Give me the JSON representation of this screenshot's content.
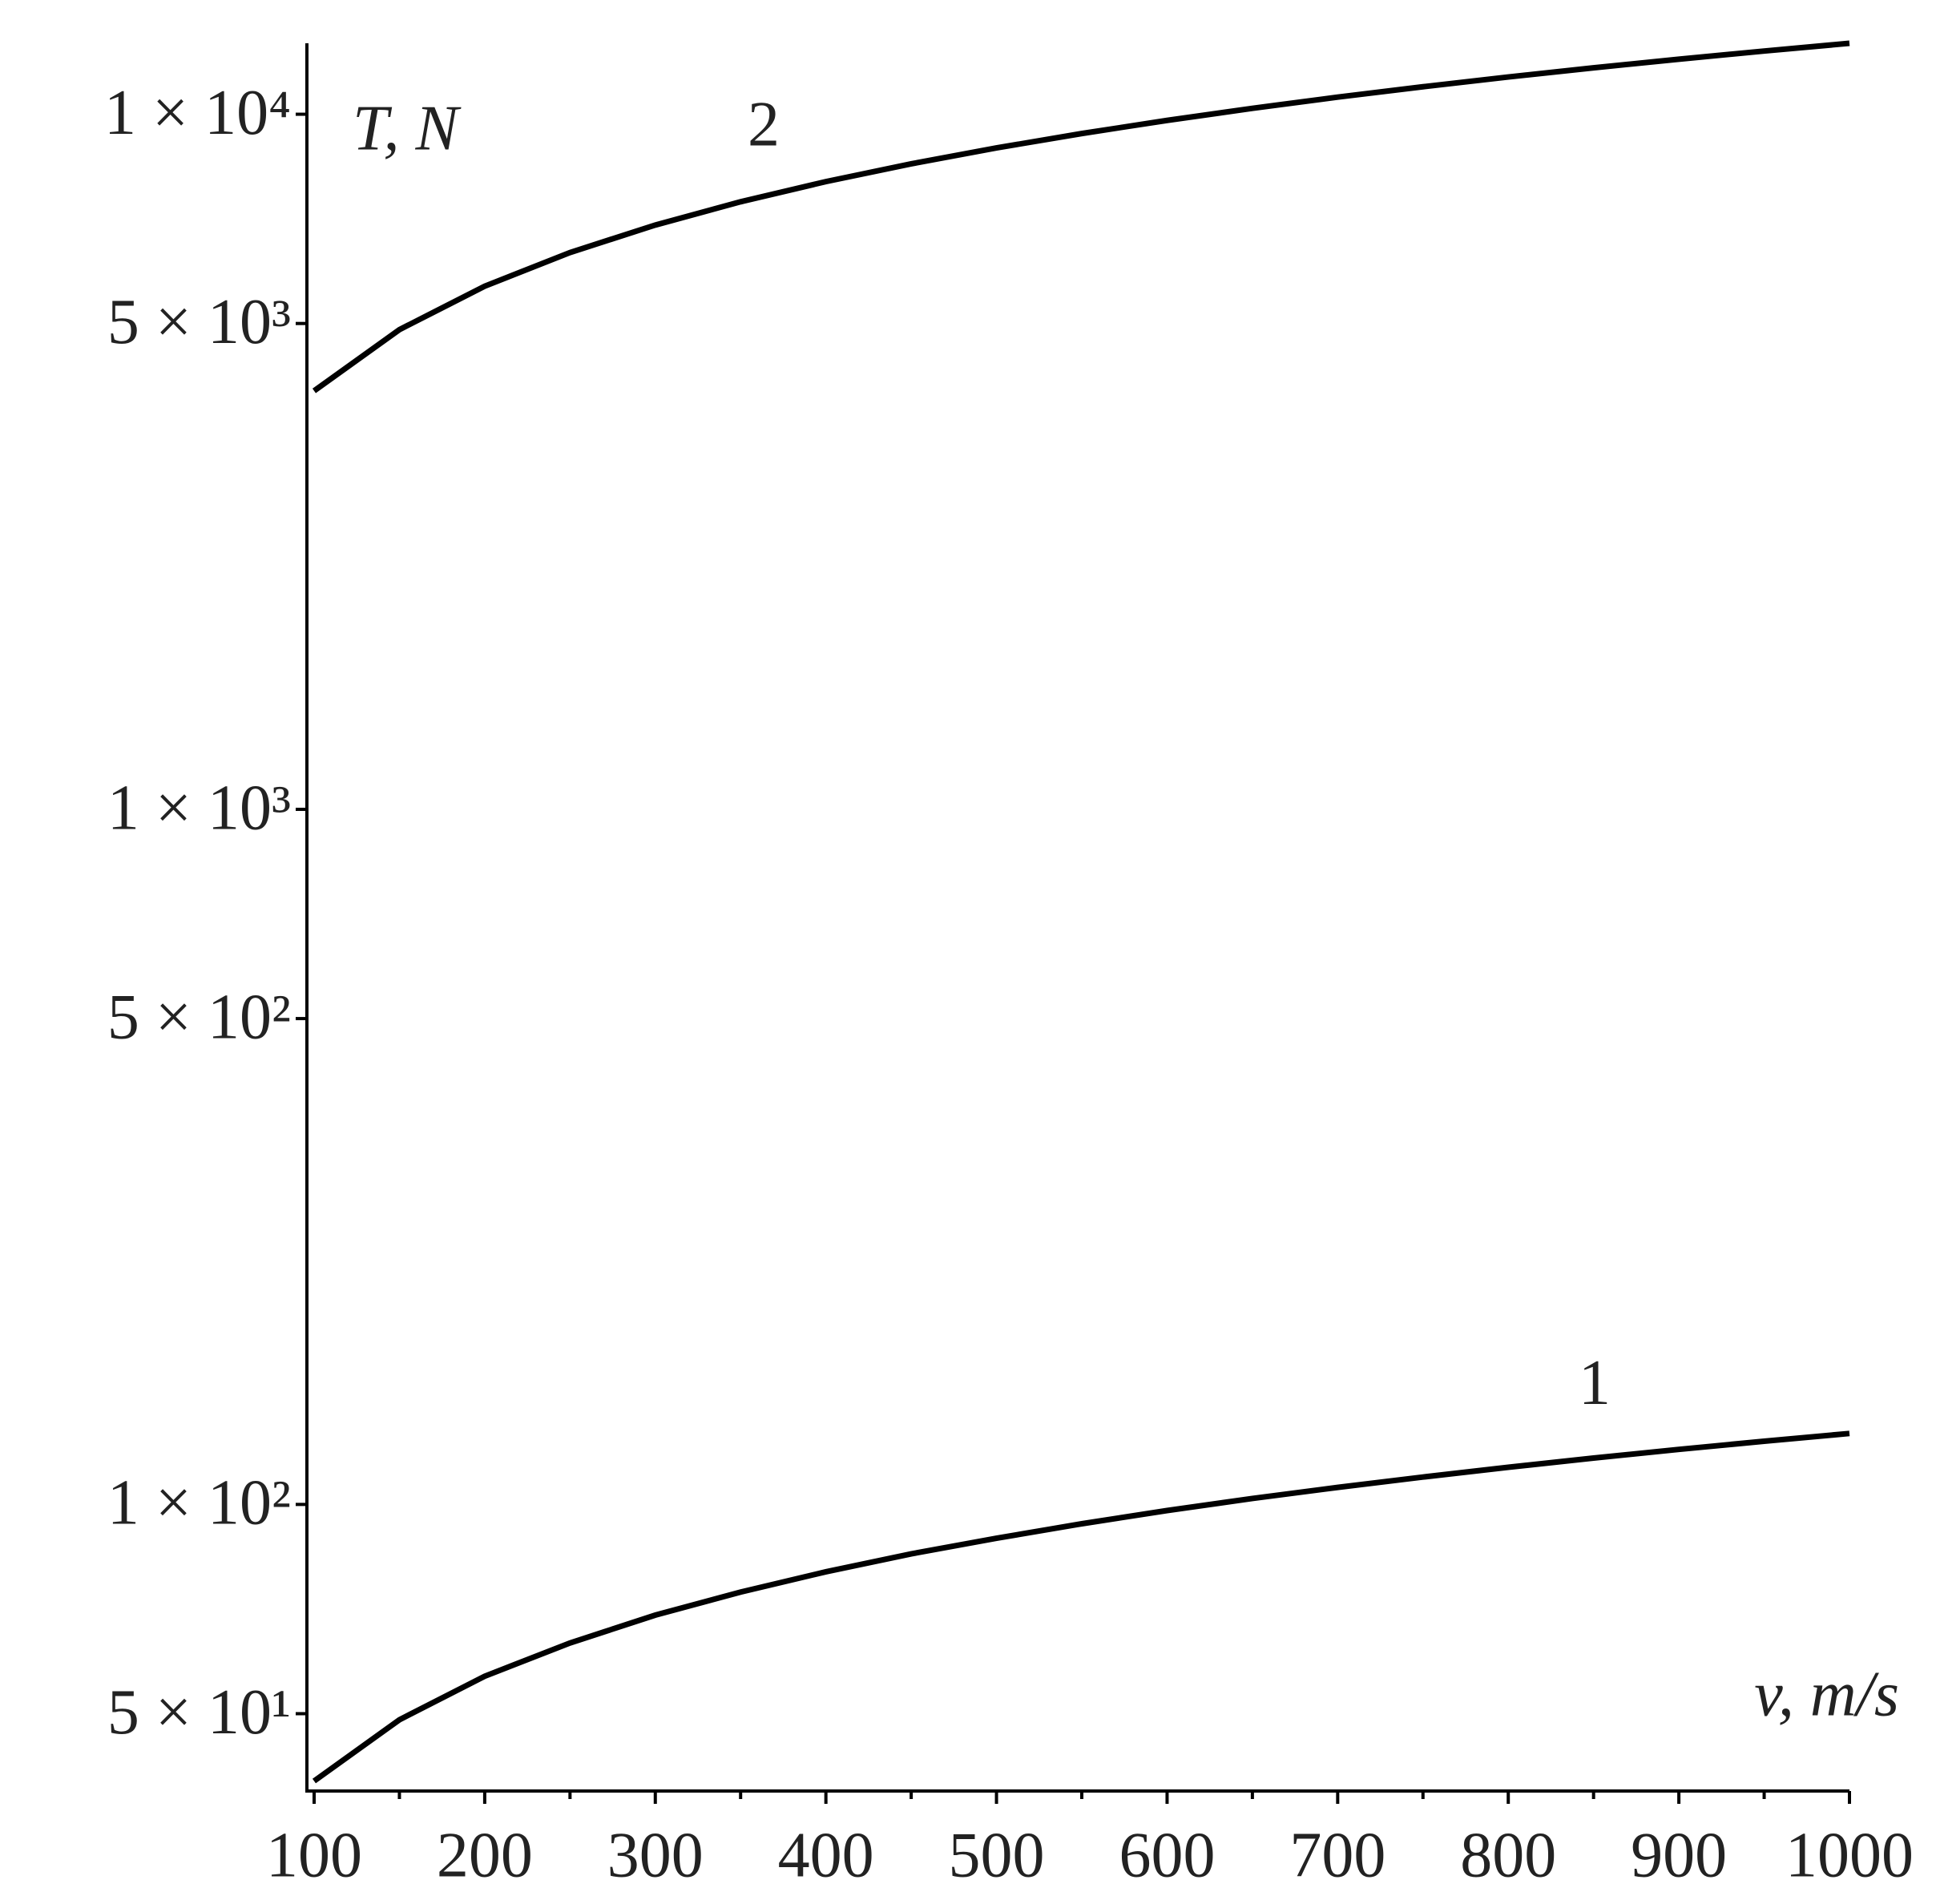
{
  "chart_data": {
    "type": "line",
    "y_label": "T, N",
    "x_label": "v, m/s",
    "x": [
      100,
      150,
      200,
      250,
      300,
      350,
      400,
      450,
      500,
      550,
      600,
      650,
      700,
      750,
      800,
      850,
      900,
      950,
      1000
    ],
    "series": [
      {
        "name": "1",
        "color": "#000000",
        "values": [
          40,
          49,
          56.6,
          63.2,
          69.3,
          74.8,
          80,
          84.9,
          89.4,
          93.8,
          98,
          102,
          105.8,
          109.5,
          113.1,
          116.6,
          120,
          123.3,
          126.5
        ]
      },
      {
        "name": "2",
        "color": "#000000",
        "values": [
          4000,
          4899,
          5657,
          6325,
          6928,
          7483,
          8000,
          8485,
          8944,
          9381,
          9798,
          10198,
          10583,
          10954,
          11314,
          11662,
          12000,
          12329,
          12649
        ]
      }
    ],
    "xlim": [
      100,
      1000
    ],
    "xticks": [
      100,
      200,
      300,
      400,
      500,
      600,
      700,
      800,
      900,
      1000
    ],
    "x_minor_ticks": [
      150,
      250,
      350,
      450,
      550,
      650,
      750,
      850,
      950
    ],
    "ylim": [
      38.7,
      12650
    ],
    "log_y": true,
    "yticks": [
      {
        "value": 50,
        "label": "5 × 10¹"
      },
      {
        "value": 100,
        "label": "1 × 10²"
      },
      {
        "value": 500,
        "label": "5 × 10²"
      },
      {
        "value": 1000,
        "label": "1 × 10³"
      },
      {
        "value": 5000,
        "label": "5 × 10³"
      },
      {
        "value": 10000,
        "label": "1 × 10⁴"
      }
    ],
    "grid": false
  }
}
